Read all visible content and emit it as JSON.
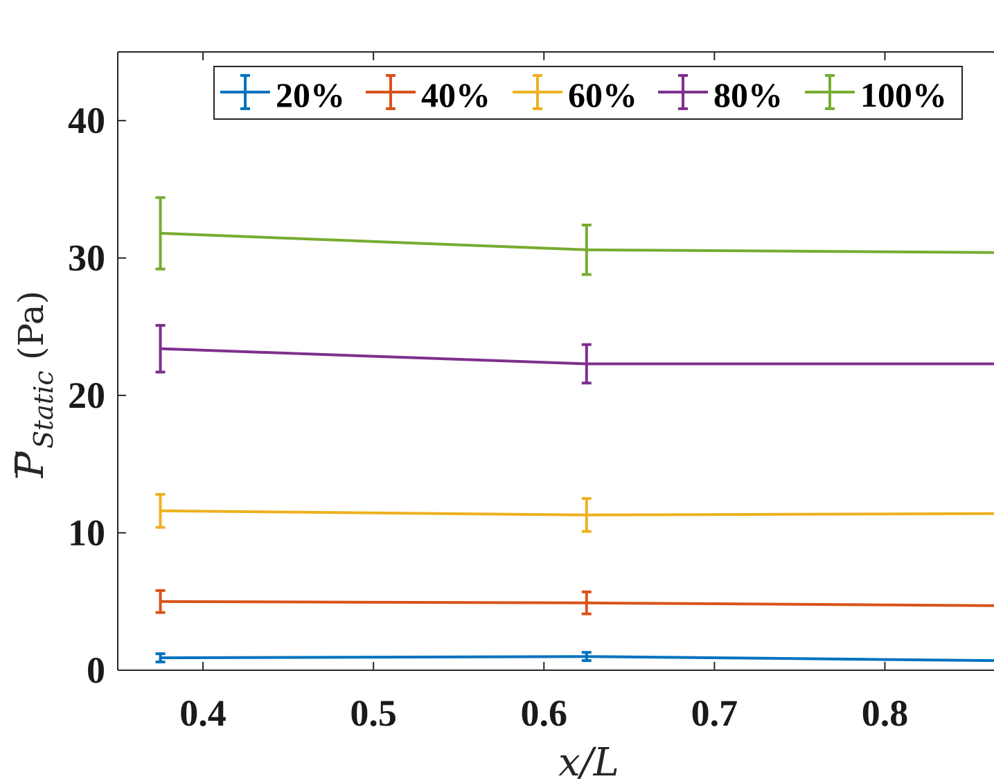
{
  "chart_data": {
    "type": "line",
    "title": "",
    "xlabel": "x/L",
    "ylabel": {
      "symbol": "P",
      "subscript": "Static",
      "unit": "(Pa)"
    },
    "xlim": [
      0.35,
      0.864
    ],
    "ylim": [
      0,
      45
    ],
    "xticks": [
      "0.4",
      "0.5",
      "0.6",
      "0.7",
      "0.8"
    ],
    "yticks": [
      "0",
      "10",
      "20",
      "30",
      "40"
    ],
    "legend_position": "top",
    "series": [
      {
        "name": "20%",
        "color": "#0072BD",
        "x": [
          0.375,
          0.625,
          0.864
        ],
        "y": [
          0.9,
          1.0,
          0.7
        ],
        "err": [
          0.3,
          0.3,
          0
        ]
      },
      {
        "name": "40%",
        "color": "#D95319",
        "x": [
          0.375,
          0.625,
          0.864
        ],
        "y": [
          5.0,
          4.9,
          4.7
        ],
        "err": [
          0.8,
          0.8,
          0
        ]
      },
      {
        "name": "60%",
        "color": "#EDB120",
        "x": [
          0.375,
          0.625,
          0.864
        ],
        "y": [
          11.6,
          11.3,
          11.4
        ],
        "err": [
          1.2,
          1.2,
          0
        ]
      },
      {
        "name": "80%",
        "color": "#7E2F8E",
        "x": [
          0.375,
          0.625,
          0.864
        ],
        "y": [
          23.4,
          22.3,
          22.3
        ],
        "err": [
          1.7,
          1.4,
          0
        ]
      },
      {
        "name": "100%",
        "color": "#77AC30",
        "x": [
          0.375,
          0.625,
          0.864
        ],
        "y": [
          31.8,
          30.6,
          30.4
        ],
        "err": [
          2.6,
          1.8,
          0
        ]
      }
    ]
  }
}
